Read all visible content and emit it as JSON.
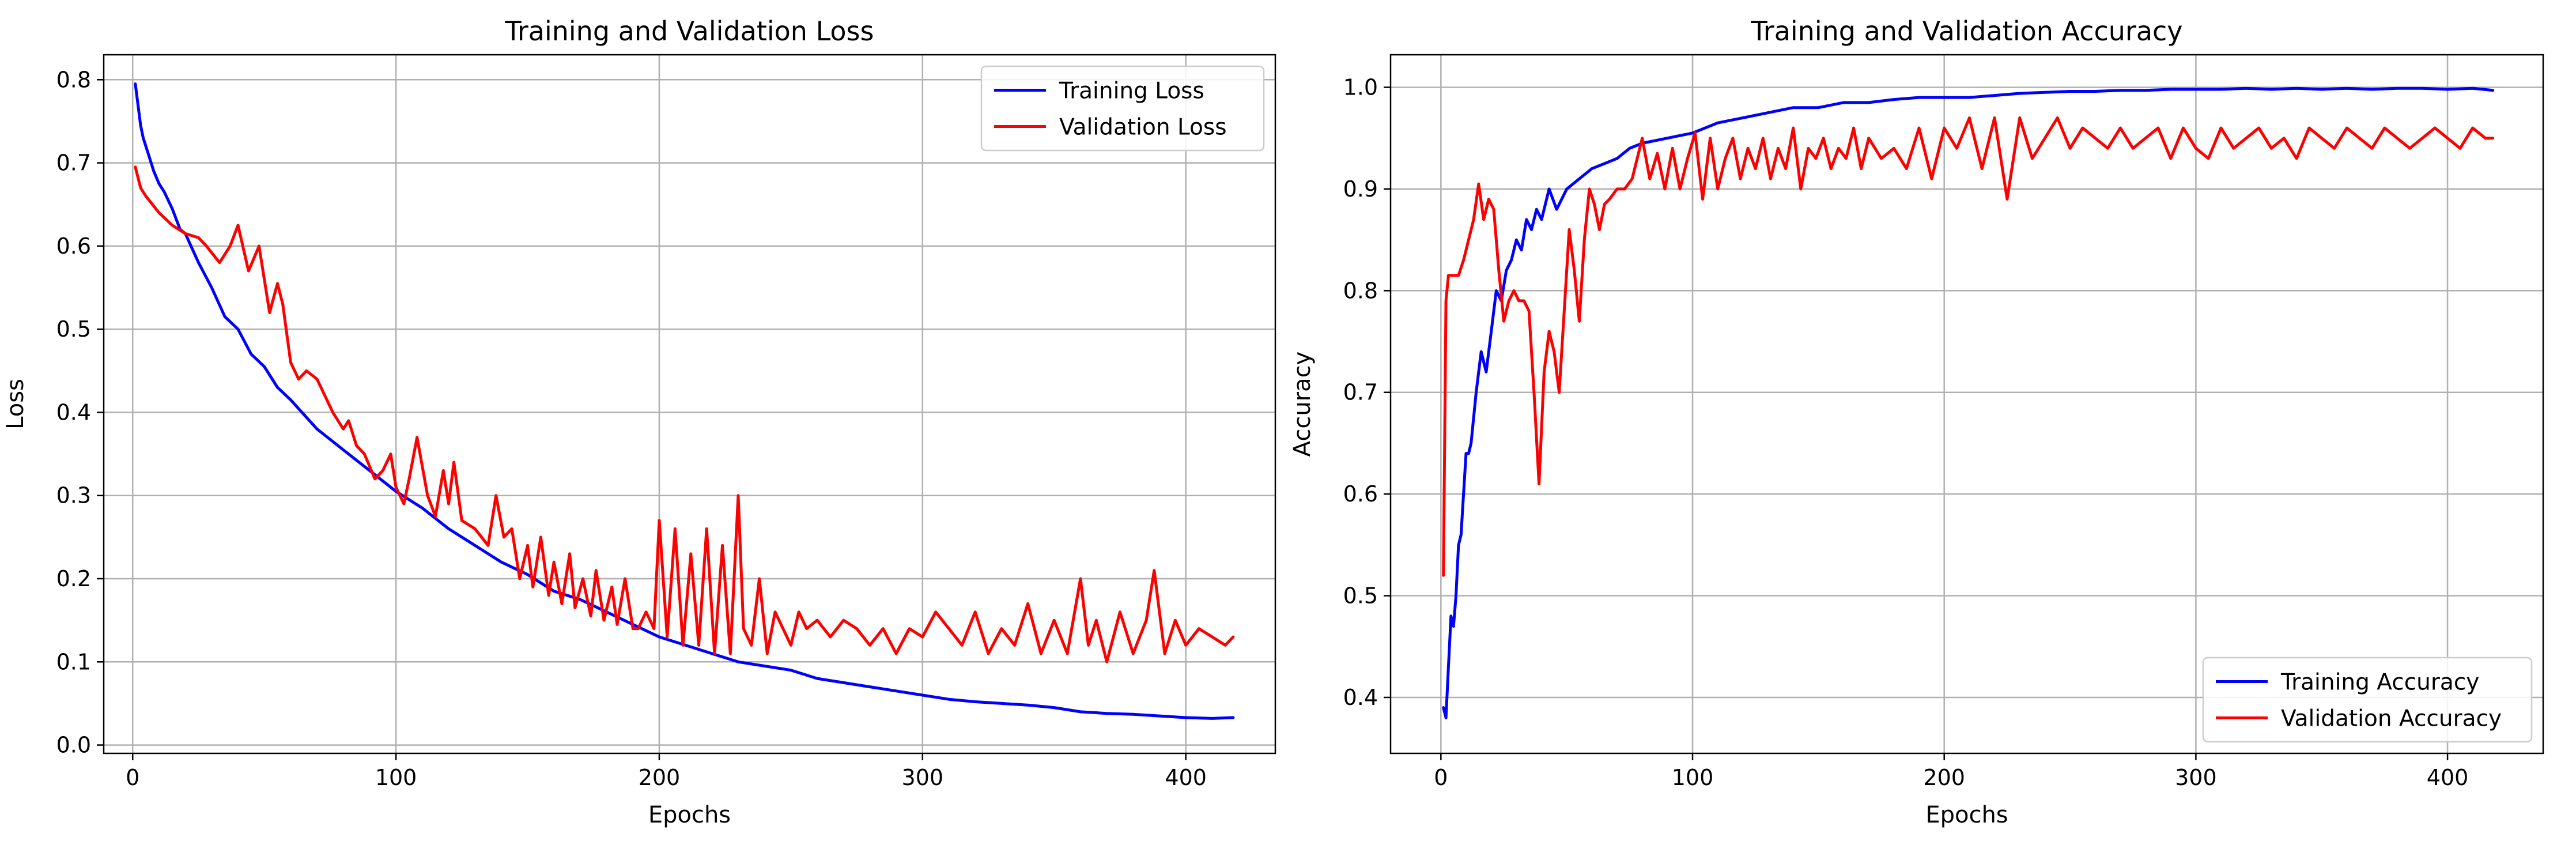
{
  "chart_data": [
    {
      "type": "line",
      "title": "Training and Validation Loss",
      "xlabel": "Epochs",
      "ylabel": "Loss",
      "xlim": [
        -11,
        434
      ],
      "ylim": [
        -0.01,
        0.83
      ],
      "xticks": [
        0,
        100,
        200,
        300,
        400
      ],
      "xtick_labels": [
        "0",
        "100",
        "200",
        "300",
        "400"
      ],
      "yticks": [
        0.0,
        0.1,
        0.2,
        0.3,
        0.4,
        0.5,
        0.6,
        0.7,
        0.8
      ],
      "ytick_labels": [
        "0.0",
        "0.1",
        "0.2",
        "0.3",
        "0.4",
        "0.5",
        "0.6",
        "0.7",
        "0.8"
      ],
      "grid": true,
      "legend_position": "upper right",
      "series": [
        {
          "name": "Training Loss",
          "color": "#0000ff",
          "x": [
            1,
            2,
            3,
            4,
            5,
            6,
            8,
            10,
            12,
            15,
            18,
            20,
            25,
            30,
            35,
            40,
            45,
            50,
            55,
            60,
            70,
            80,
            90,
            100,
            110,
            120,
            130,
            140,
            150,
            160,
            170,
            180,
            190,
            200,
            210,
            220,
            230,
            240,
            250,
            260,
            270,
            280,
            290,
            300,
            310,
            320,
            330,
            340,
            350,
            360,
            370,
            380,
            390,
            400,
            410,
            418
          ],
          "y": [
            0.795,
            0.77,
            0.745,
            0.73,
            0.72,
            0.71,
            0.69,
            0.675,
            0.665,
            0.645,
            0.62,
            0.615,
            0.58,
            0.55,
            0.515,
            0.5,
            0.47,
            0.455,
            0.43,
            0.415,
            0.38,
            0.355,
            0.33,
            0.305,
            0.285,
            0.26,
            0.24,
            0.22,
            0.205,
            0.185,
            0.175,
            0.16,
            0.145,
            0.13,
            0.12,
            0.11,
            0.1,
            0.095,
            0.09,
            0.08,
            0.075,
            0.07,
            0.065,
            0.06,
            0.055,
            0.052,
            0.05,
            0.048,
            0.045,
            0.04,
            0.038,
            0.037,
            0.035,
            0.033,
            0.032,
            0.033
          ]
        },
        {
          "name": "Validation Loss",
          "color": "#ff0000",
          "x": [
            1,
            3,
            5,
            10,
            15,
            20,
            25,
            28,
            33,
            37,
            40,
            44,
            48,
            52,
            55,
            57,
            60,
            63,
            66,
            70,
            73,
            76,
            80,
            82,
            85,
            88,
            92,
            95,
            98,
            100,
            103,
            105,
            108,
            112,
            115,
            118,
            120,
            122,
            125,
            130,
            135,
            138,
            141,
            144,
            147,
            150,
            152,
            155,
            158,
            160,
            163,
            166,
            168,
            171,
            174,
            176,
            179,
            182,
            184,
            187,
            190,
            192,
            195,
            198,
            200,
            203,
            206,
            209,
            212,
            215,
            218,
            221,
            224,
            227,
            230,
            232,
            235,
            238,
            241,
            244,
            247,
            250,
            253,
            256,
            260,
            265,
            270,
            275,
            280,
            285,
            290,
            295,
            300,
            305,
            310,
            315,
            320,
            325,
            330,
            335,
            340,
            345,
            350,
            355,
            360,
            363,
            366,
            370,
            375,
            380,
            385,
            388,
            392,
            396,
            400,
            405,
            410,
            415,
            418
          ],
          "y": [
            0.695,
            0.67,
            0.66,
            0.64,
            0.625,
            0.615,
            0.61,
            0.6,
            0.58,
            0.6,
            0.625,
            0.57,
            0.6,
            0.52,
            0.555,
            0.53,
            0.46,
            0.44,
            0.45,
            0.44,
            0.42,
            0.4,
            0.38,
            0.39,
            0.36,
            0.35,
            0.32,
            0.33,
            0.35,
            0.31,
            0.29,
            0.32,
            0.37,
            0.3,
            0.275,
            0.33,
            0.29,
            0.34,
            0.27,
            0.26,
            0.24,
            0.3,
            0.25,
            0.26,
            0.2,
            0.24,
            0.19,
            0.25,
            0.18,
            0.22,
            0.17,
            0.23,
            0.165,
            0.2,
            0.155,
            0.21,
            0.15,
            0.19,
            0.145,
            0.2,
            0.14,
            0.14,
            0.16,
            0.14,
            0.27,
            0.13,
            0.26,
            0.12,
            0.23,
            0.12,
            0.26,
            0.11,
            0.24,
            0.11,
            0.3,
            0.14,
            0.12,
            0.2,
            0.11,
            0.16,
            0.14,
            0.12,
            0.16,
            0.14,
            0.15,
            0.13,
            0.15,
            0.14,
            0.12,
            0.14,
            0.11,
            0.14,
            0.13,
            0.16,
            0.14,
            0.12,
            0.16,
            0.11,
            0.14,
            0.12,
            0.17,
            0.11,
            0.15,
            0.11,
            0.2,
            0.12,
            0.15,
            0.1,
            0.16,
            0.11,
            0.15,
            0.21,
            0.11,
            0.15,
            0.12,
            0.14,
            0.13,
            0.12,
            0.13
          ]
        }
      ]
    },
    {
      "type": "line",
      "title": "Training and Validation Accuracy",
      "xlabel": "Epochs",
      "ylabel": "Accuracy",
      "xlim": [
        -20,
        438
      ],
      "ylim": [
        0.345,
        1.032
      ],
      "xticks": [
        0,
        100,
        200,
        300,
        400
      ],
      "xtick_labels": [
        "0",
        "100",
        "200",
        "300",
        "400"
      ],
      "yticks": [
        0.4,
        0.5,
        0.6,
        0.7,
        0.8,
        0.9,
        1.0
      ],
      "ytick_labels": [
        "0.4",
        "0.5",
        "0.6",
        "0.7",
        "0.8",
        "0.9",
        "1.0"
      ],
      "grid": true,
      "legend_position": "lower right",
      "series": [
        {
          "name": "Training Accuracy",
          "color": "#0000ff",
          "x": [
            1,
            2,
            3,
            4,
            5,
            6,
            7,
            8,
            9,
            10,
            11,
            12,
            14,
            16,
            18,
            20,
            22,
            24,
            26,
            28,
            30,
            32,
            34,
            36,
            38,
            40,
            43,
            46,
            50,
            55,
            60,
            65,
            70,
            75,
            80,
            90,
            100,
            110,
            120,
            130,
            140,
            150,
            160,
            170,
            180,
            190,
            200,
            210,
            220,
            230,
            240,
            250,
            260,
            270,
            280,
            290,
            300,
            310,
            320,
            330,
            340,
            350,
            360,
            370,
            380,
            390,
            400,
            410,
            418
          ],
          "y": [
            0.39,
            0.38,
            0.43,
            0.48,
            0.47,
            0.5,
            0.55,
            0.56,
            0.6,
            0.64,
            0.64,
            0.65,
            0.7,
            0.74,
            0.72,
            0.76,
            0.8,
            0.79,
            0.82,
            0.83,
            0.85,
            0.84,
            0.87,
            0.86,
            0.88,
            0.87,
            0.9,
            0.88,
            0.9,
            0.91,
            0.92,
            0.925,
            0.93,
            0.94,
            0.945,
            0.95,
            0.955,
            0.965,
            0.97,
            0.975,
            0.98,
            0.98,
            0.985,
            0.985,
            0.988,
            0.99,
            0.99,
            0.99,
            0.992,
            0.994,
            0.995,
            0.996,
            0.996,
            0.997,
            0.997,
            0.998,
            0.998,
            0.998,
            0.999,
            0.998,
            0.999,
            0.998,
            0.999,
            0.998,
            0.999,
            0.999,
            0.998,
            0.999,
            0.997
          ]
        },
        {
          "name": "Validation Accuracy",
          "color": "#ff0000",
          "x": [
            1,
            2,
            3,
            4,
            5,
            7,
            9,
            11,
            13,
            15,
            17,
            19,
            21,
            23,
            25,
            27,
            29,
            31,
            33,
            35,
            37,
            39,
            41,
            43,
            45,
            47,
            49,
            51,
            53,
            55,
            57,
            59,
            61,
            63,
            65,
            67,
            70,
            73,
            76,
            80,
            83,
            86,
            89,
            92,
            95,
            98,
            101,
            104,
            107,
            110,
            113,
            116,
            119,
            122,
            125,
            128,
            131,
            134,
            137,
            140,
            143,
            146,
            149,
            152,
            155,
            158,
            161,
            164,
            167,
            170,
            175,
            180,
            185,
            190,
            195,
            200,
            205,
            210,
            215,
            220,
            225,
            230,
            235,
            240,
            245,
            250,
            255,
            260,
            265,
            270,
            275,
            280,
            285,
            290,
            295,
            300,
            305,
            310,
            315,
            320,
            325,
            330,
            335,
            340,
            345,
            350,
            355,
            360,
            365,
            370,
            375,
            380,
            385,
            390,
            395,
            400,
            405,
            410,
            415,
            418
          ],
          "y": [
            0.52,
            0.79,
            0.815,
            0.815,
            0.815,
            0.815,
            0.83,
            0.85,
            0.87,
            0.905,
            0.87,
            0.89,
            0.88,
            0.82,
            0.77,
            0.79,
            0.8,
            0.79,
            0.79,
            0.78,
            0.7,
            0.61,
            0.72,
            0.76,
            0.74,
            0.7,
            0.78,
            0.86,
            0.82,
            0.77,
            0.85,
            0.9,
            0.885,
            0.86,
            0.885,
            0.89,
            0.9,
            0.9,
            0.91,
            0.95,
            0.91,
            0.935,
            0.9,
            0.94,
            0.9,
            0.93,
            0.955,
            0.89,
            0.95,
            0.9,
            0.93,
            0.95,
            0.91,
            0.94,
            0.92,
            0.95,
            0.91,
            0.94,
            0.92,
            0.96,
            0.9,
            0.94,
            0.93,
            0.95,
            0.92,
            0.94,
            0.93,
            0.96,
            0.92,
            0.95,
            0.93,
            0.94,
            0.92,
            0.96,
            0.91,
            0.96,
            0.94,
            0.97,
            0.92,
            0.97,
            0.89,
            0.97,
            0.93,
            0.95,
            0.97,
            0.94,
            0.96,
            0.95,
            0.94,
            0.96,
            0.94,
            0.95,
            0.96,
            0.93,
            0.96,
            0.94,
            0.93,
            0.96,
            0.94,
            0.95,
            0.96,
            0.94,
            0.95,
            0.93,
            0.96,
            0.95,
            0.94,
            0.96,
            0.95,
            0.94,
            0.96,
            0.95,
            0.94,
            0.95,
            0.96,
            0.95,
            0.94,
            0.96,
            0.95,
            0.95
          ]
        }
      ]
    }
  ]
}
